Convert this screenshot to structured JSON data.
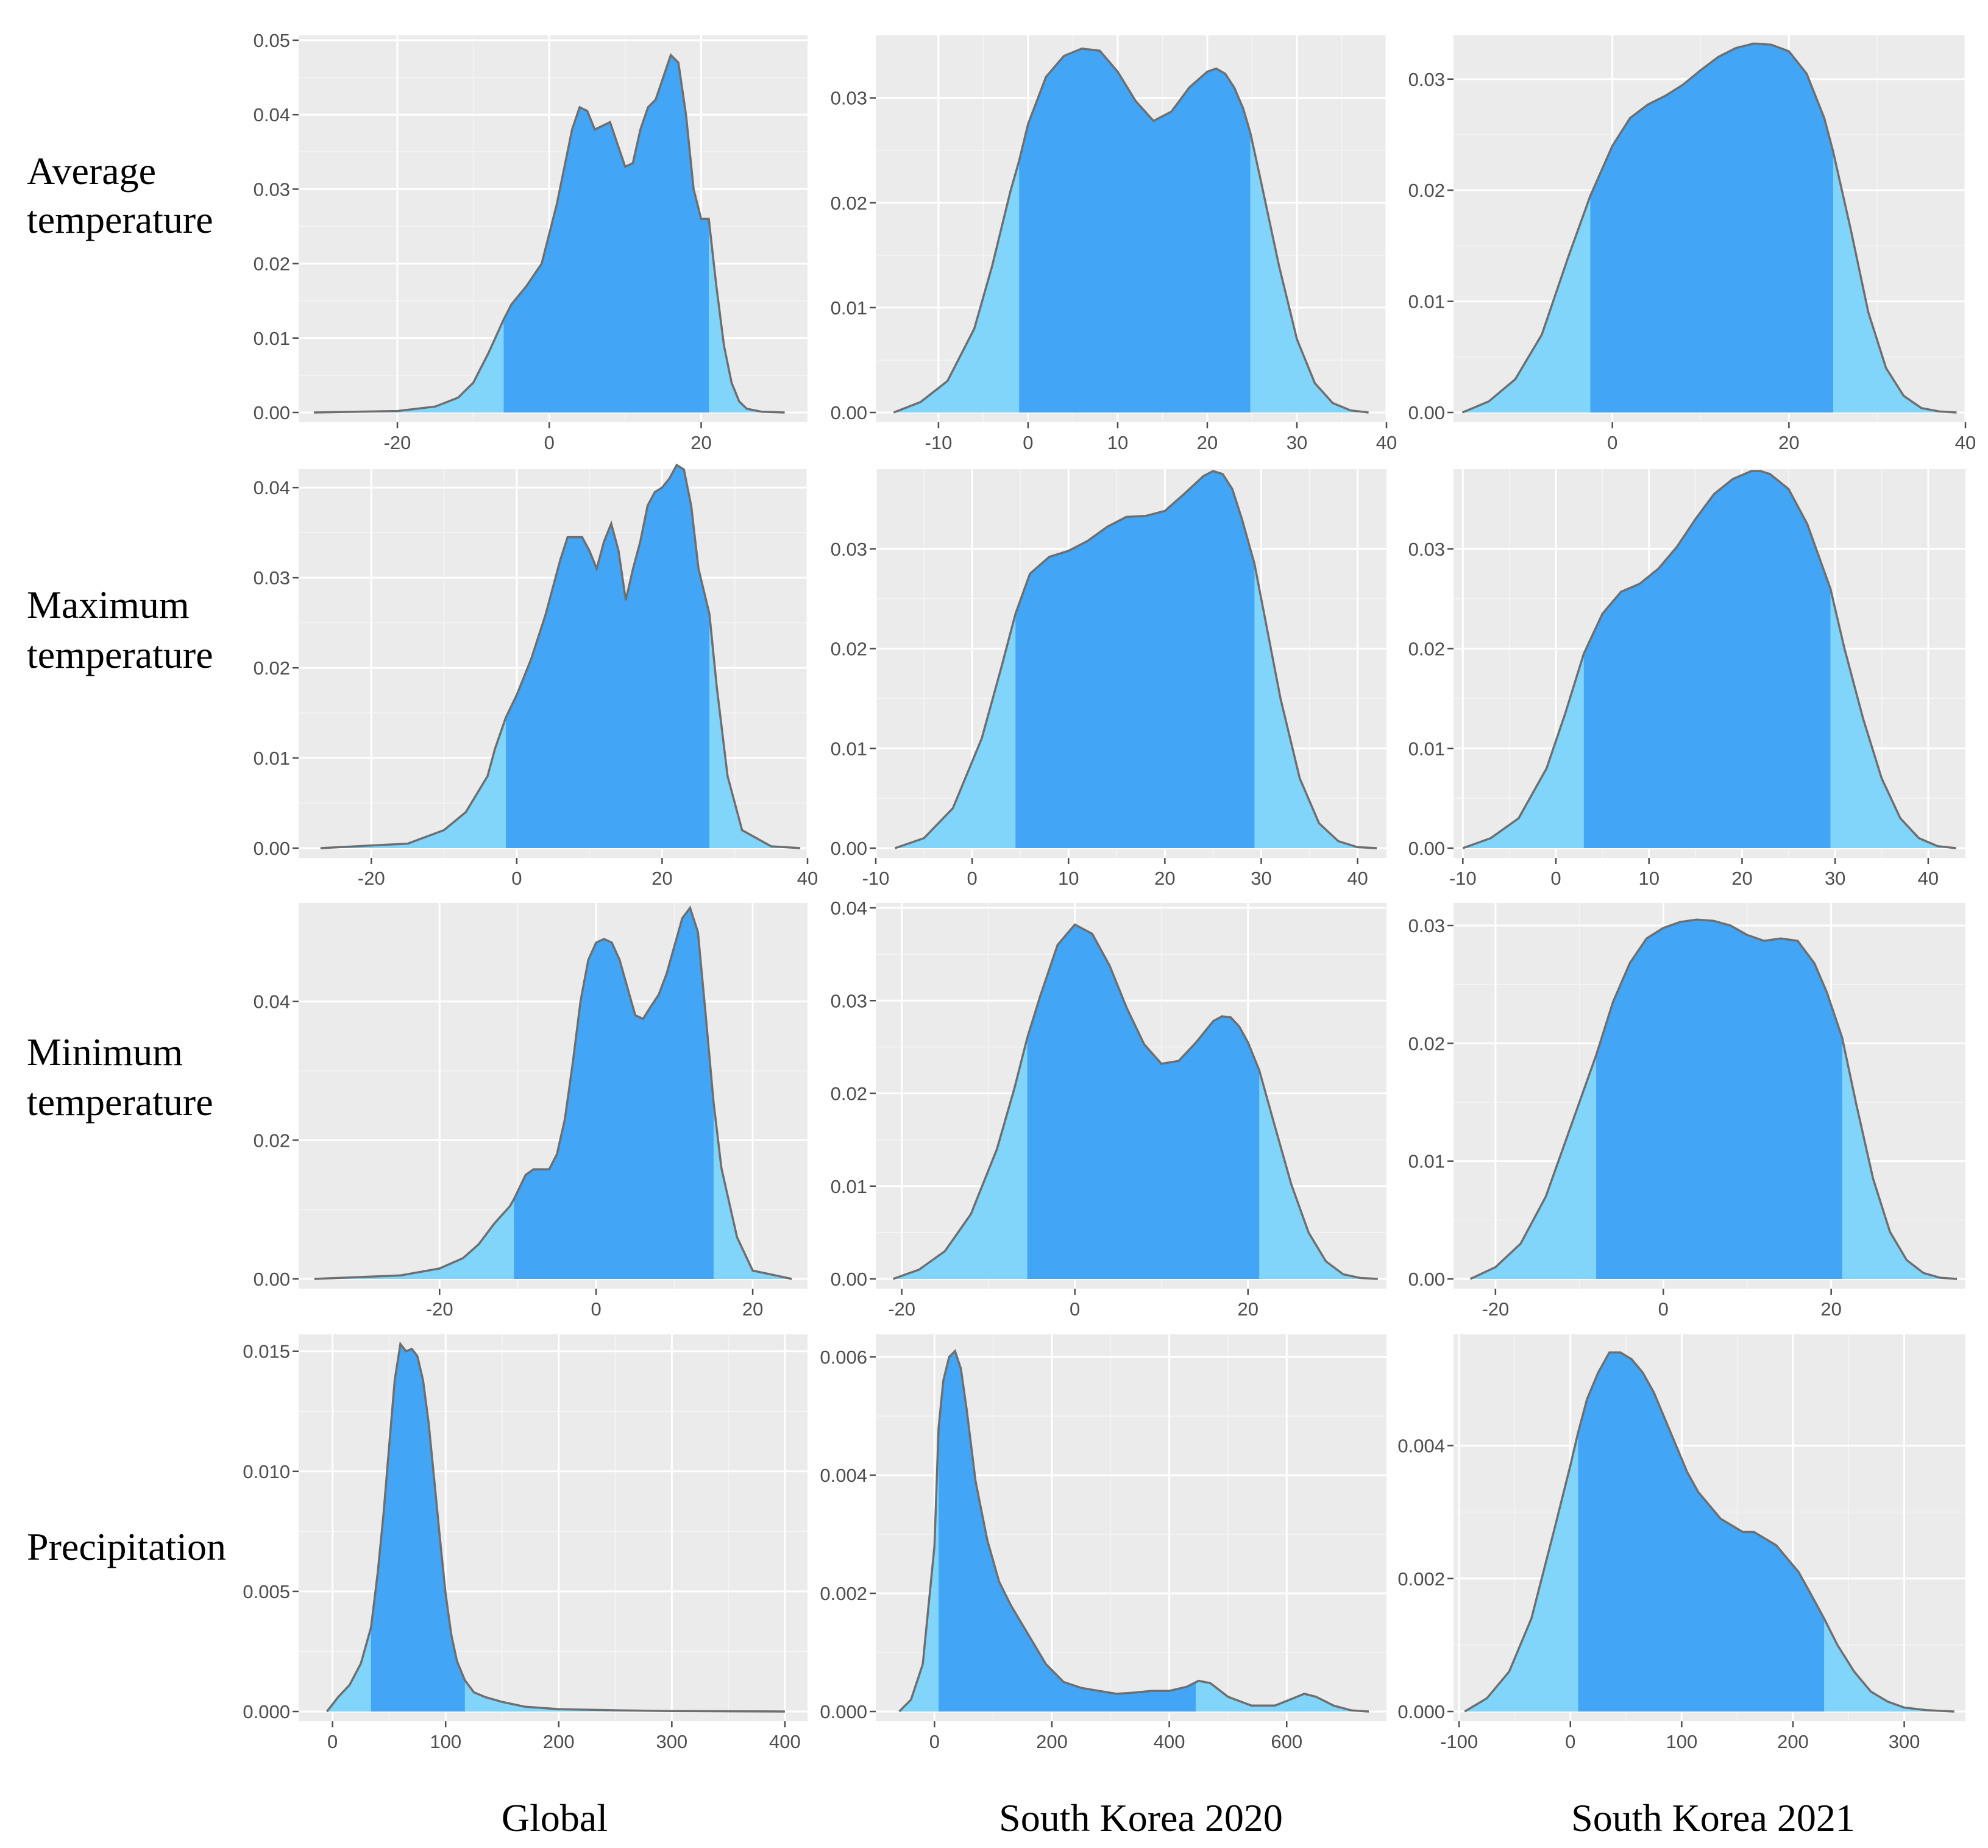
{
  "figure": {
    "row_labels": [
      [
        "Average",
        "temperature"
      ],
      [
        "Maximum",
        "temperature"
      ],
      [
        "Minimum",
        "temperature"
      ],
      [
        "Precipitation"
      ]
    ],
    "col_labels": [
      "Global",
      "South Korea 2020",
      "South Korea 2021"
    ],
    "colors": {
      "panel": "#ebebeb",
      "grid": "#ffffff",
      "tail_fill": "#81d4fa",
      "central_fill": "#42a5f5",
      "outline": "#6e6e6e"
    }
  },
  "chart_data": [
    {
      "type": "area",
      "title": "Average temperature - Global",
      "row": 0,
      "col": 0,
      "xlim": [
        -33,
        34
      ],
      "ylim": [
        0,
        0.05
      ],
      "x_ticks": [
        -20,
        0,
        20
      ],
      "x_tick_labels": [
        "-20",
        "0",
        "20"
      ],
      "y_ticks": [
        0,
        0.01,
        0.02,
        0.03,
        0.04,
        0.05
      ],
      "y_tick_labels": [
        "0.00",
        "0.01",
        "0.02",
        "0.03",
        "0.04",
        "0.05"
      ],
      "central_interval": [
        -6,
        21
      ],
      "x": [
        -31,
        -20,
        -15,
        -12,
        -10,
        -8,
        -6,
        -5,
        -3,
        -1,
        1,
        2,
        3,
        4,
        5,
        6,
        7,
        8,
        9,
        10,
        11,
        12,
        13,
        14,
        15,
        16,
        17,
        18,
        19,
        20,
        21,
        22,
        23,
        24,
        25,
        26,
        28,
        31
      ],
      "y": [
        0,
        0.0002,
        0.0008,
        0.002,
        0.004,
        0.008,
        0.0125,
        0.0145,
        0.017,
        0.02,
        0.028,
        0.033,
        0.038,
        0.041,
        0.0405,
        0.038,
        0.0385,
        0.039,
        0.036,
        0.033,
        0.0335,
        0.038,
        0.041,
        0.042,
        0.045,
        0.048,
        0.047,
        0.04,
        0.03,
        0.026,
        0.026,
        0.017,
        0.009,
        0.004,
        0.0015,
        0.0005,
        0.0001,
        0
      ]
    },
    {
      "type": "area",
      "title": "Average temperature - South Korea 2020",
      "row": 0,
      "col": 1,
      "xlim": [
        -17,
        40
      ],
      "ylim": [
        0,
        0.0355
      ],
      "x_ticks": [
        -10,
        0,
        10,
        20,
        30,
        40
      ],
      "x_tick_labels": [
        "-10",
        "0",
        "10",
        "20",
        "30",
        "40"
      ],
      "y_ticks": [
        0,
        0.01,
        0.02,
        0.03
      ],
      "y_tick_labels": [
        "0.00",
        "0.01",
        "0.02",
        "0.03"
      ],
      "central_interval": [
        -1,
        24.8
      ],
      "x": [
        -15,
        -12,
        -9,
        -6,
        -4,
        -2,
        -1,
        0,
        2,
        4,
        6,
        8,
        10,
        12,
        14,
        16,
        18,
        20,
        21,
        22,
        23,
        24,
        24.8,
        26,
        28,
        30,
        32,
        34,
        36,
        38
      ],
      "y": [
        0,
        0.001,
        0.003,
        0.008,
        0.014,
        0.021,
        0.024,
        0.0275,
        0.032,
        0.034,
        0.0347,
        0.0345,
        0.0325,
        0.0297,
        0.0278,
        0.0287,
        0.031,
        0.0325,
        0.0328,
        0.0323,
        0.031,
        0.029,
        0.0267,
        0.022,
        0.014,
        0.007,
        0.0028,
        0.0009,
        0.0002,
        0
      ]
    },
    {
      "type": "area",
      "title": "Average temperature - South Korea 2021",
      "row": 0,
      "col": 2,
      "xlim": [
        -18,
        40
      ],
      "ylim": [
        0,
        0.0335
      ],
      "x_ticks": [
        0,
        20,
        40
      ],
      "x_tick_labels": [
        "0",
        "20",
        "40"
      ],
      "y_ticks": [
        0,
        0.01,
        0.02,
        0.03
      ],
      "y_tick_labels": [
        "0.00",
        "0.01",
        "0.02",
        "0.03"
      ],
      "central_interval": [
        -2.5,
        25
      ],
      "x": [
        -17,
        -14,
        -11,
        -8,
        -5,
        -2.5,
        0,
        2,
        4,
        6,
        8,
        10,
        12,
        14,
        16,
        18,
        20,
        22,
        24,
        25,
        27,
        29,
        31,
        33,
        35,
        37,
        39
      ],
      "y": [
        0,
        0.001,
        0.003,
        0.007,
        0.014,
        0.0195,
        0.024,
        0.0265,
        0.0277,
        0.0285,
        0.0295,
        0.0308,
        0.032,
        0.0328,
        0.0332,
        0.0331,
        0.0325,
        0.0305,
        0.0265,
        0.0235,
        0.0165,
        0.009,
        0.004,
        0.0015,
        0.0004,
        0.0001,
        0
      ]
    },
    {
      "type": "area",
      "title": "Maximum temperature - Global",
      "row": 1,
      "col": 0,
      "xlim": [
        -30,
        40
      ],
      "ylim": [
        0,
        0.0415
      ],
      "x_ticks": [
        -20,
        0,
        20,
        40
      ],
      "x_tick_labels": [
        "-20",
        "0",
        "20",
        "40"
      ],
      "y_ticks": [
        0,
        0.01,
        0.02,
        0.03,
        0.04
      ],
      "y_tick_labels": [
        "0.00",
        "0.01",
        "0.02",
        "0.03",
        "0.04"
      ],
      "central_interval": [
        -1.5,
        26.5
      ],
      "x": [
        -27,
        -15,
        -10,
        -7,
        -4,
        -3,
        -1.5,
        0,
        2,
        4,
        6,
        7,
        8,
        9,
        10,
        11,
        12,
        13,
        14,
        15,
        16,
        17,
        18,
        19,
        20,
        21,
        22,
        23,
        24,
        25,
        26.5,
        27.5,
        29,
        31,
        35,
        39
      ],
      "y": [
        0,
        0.0005,
        0.002,
        0.004,
        0.008,
        0.011,
        0.0145,
        0.017,
        0.021,
        0.026,
        0.032,
        0.0345,
        0.0345,
        0.0345,
        0.033,
        0.031,
        0.034,
        0.036,
        0.033,
        0.0275,
        0.031,
        0.034,
        0.038,
        0.0395,
        0.04,
        0.041,
        0.0425,
        0.042,
        0.038,
        0.031,
        0.026,
        0.018,
        0.008,
        0.002,
        0.0002,
        0
      ]
    },
    {
      "type": "area",
      "title": "Maximum temperature - South Korea 2020",
      "row": 1,
      "col": 1,
      "xlim": [
        -10,
        43
      ],
      "ylim": [
        0,
        0.0375
      ],
      "x_ticks": [
        -10,
        0,
        10,
        20,
        30,
        40
      ],
      "x_tick_labels": [
        "-10",
        "0",
        "10",
        "20",
        "30",
        "40"
      ],
      "y_ticks": [
        0,
        0.01,
        0.02,
        0.03
      ],
      "y_tick_labels": [
        "0.00",
        "0.01",
        "0.02",
        "0.03"
      ],
      "central_interval": [
        4.5,
        29.3
      ],
      "x": [
        -8,
        -5,
        -2,
        1,
        3,
        4.5,
        6,
        8,
        10,
        12,
        14,
        16,
        18,
        20,
        22,
        24,
        25,
        26,
        27,
        28,
        29.3,
        30.5,
        32,
        34,
        36,
        38,
        40,
        42
      ],
      "y": [
        0,
        0.001,
        0.004,
        0.011,
        0.018,
        0.0235,
        0.0275,
        0.0292,
        0.0298,
        0.0308,
        0.0322,
        0.0332,
        0.0333,
        0.0338,
        0.0355,
        0.0373,
        0.0378,
        0.0375,
        0.036,
        0.033,
        0.0285,
        0.0225,
        0.015,
        0.007,
        0.0025,
        0.0007,
        0.0001,
        0
      ]
    },
    {
      "type": "area",
      "title": "Maximum temperature - South Korea 2021",
      "row": 1,
      "col": 2,
      "xlim": [
        -11,
        44
      ],
      "ylim": [
        0,
        0.0375
      ],
      "x_ticks": [
        -10,
        0,
        10,
        20,
        30,
        40
      ],
      "x_tick_labels": [
        "-10",
        "0",
        "10",
        "20",
        "30",
        "40"
      ],
      "y_ticks": [
        0,
        0.01,
        0.02,
        0.03
      ],
      "y_tick_labels": [
        "0.00",
        "0.01",
        "0.02",
        "0.03"
      ],
      "central_interval": [
        3,
        29.5
      ],
      "x": [
        -10,
        -7,
        -4,
        -1,
        1,
        3,
        5,
        7,
        9,
        11,
        13,
        15,
        17,
        19,
        21,
        22,
        23,
        25,
        27,
        29.5,
        31,
        33,
        35,
        37,
        39,
        41,
        43
      ],
      "y": [
        0,
        0.001,
        0.003,
        0.008,
        0.0135,
        0.0195,
        0.0235,
        0.0257,
        0.0265,
        0.028,
        0.0302,
        0.033,
        0.0355,
        0.037,
        0.0378,
        0.0378,
        0.0375,
        0.036,
        0.0325,
        0.026,
        0.02,
        0.013,
        0.007,
        0.003,
        0.001,
        0.0002,
        0
      ]
    },
    {
      "type": "area",
      "title": "Minimum temperature - Global",
      "row": 2,
      "col": 0,
      "xlim": [
        -38,
        27
      ],
      "ylim": [
        0,
        0.0535
      ],
      "x_ticks": [
        -20,
        0,
        20
      ],
      "x_tick_labels": [
        "-20",
        "0",
        "20"
      ],
      "y_ticks": [
        0,
        0.02,
        0.04
      ],
      "y_tick_labels": [
        "0.00",
        "0.02",
        "0.04"
      ],
      "central_interval": [
        -10.5,
        15
      ],
      "x": [
        -36,
        -25,
        -20,
        -17,
        -15,
        -13,
        -11,
        -10.5,
        -9,
        -8,
        -6,
        -5,
        -4,
        -3,
        -2,
        -1,
        0,
        1,
        2,
        3,
        4,
        5,
        6,
        7,
        8,
        9,
        10,
        11,
        12,
        13,
        14,
        15,
        16,
        18,
        20,
        25
      ],
      "y": [
        0,
        0.0005,
        0.0015,
        0.003,
        0.005,
        0.008,
        0.0105,
        0.0115,
        0.015,
        0.0158,
        0.0158,
        0.018,
        0.023,
        0.031,
        0.04,
        0.046,
        0.0485,
        0.049,
        0.0485,
        0.046,
        0.042,
        0.038,
        0.0375,
        0.0393,
        0.041,
        0.044,
        0.048,
        0.052,
        0.0535,
        0.05,
        0.038,
        0.0255,
        0.016,
        0.006,
        0.0012,
        0
      ]
    },
    {
      "type": "area",
      "title": "Minimum temperature - South Korea 2020",
      "row": 2,
      "col": 1,
      "xlim": [
        -23,
        36
      ],
      "ylim": [
        0,
        0.04
      ],
      "x_ticks": [
        -20,
        0,
        20
      ],
      "x_tick_labels": [
        "-20",
        "0",
        "20"
      ],
      "y_ticks": [
        0,
        0.01,
        0.02,
        0.03,
        0.04
      ],
      "y_tick_labels": [
        "0.00",
        "0.01",
        "0.02",
        "0.03",
        "0.04"
      ],
      "central_interval": [
        -5.5,
        21.3
      ],
      "x": [
        -21,
        -18,
        -15,
        -12,
        -9,
        -7,
        -5.5,
        -4,
        -2,
        0,
        2,
        4,
        6,
        8,
        10,
        12,
        14,
        16,
        17,
        18,
        19,
        20,
        21.3,
        23,
        25,
        27,
        29,
        31,
        33,
        35
      ],
      "y": [
        0,
        0.001,
        0.003,
        0.007,
        0.014,
        0.0205,
        0.026,
        0.0305,
        0.036,
        0.0382,
        0.0372,
        0.0338,
        0.0292,
        0.0253,
        0.0232,
        0.0235,
        0.0255,
        0.0278,
        0.0283,
        0.0282,
        0.0272,
        0.0255,
        0.0225,
        0.0168,
        0.0102,
        0.005,
        0.0019,
        0.0005,
        0.0001,
        0
      ]
    },
    {
      "type": "area",
      "title": "Minimum temperature - South Korea 2021",
      "row": 2,
      "col": 2,
      "xlim": [
        -25,
        36
      ],
      "ylim": [
        0,
        0.0315
      ],
      "x_ticks": [
        -20,
        0,
        20
      ],
      "x_tick_labels": [
        "-20",
        "0",
        "20"
      ],
      "y_ticks": [
        0,
        0.01,
        0.02,
        0.03
      ],
      "y_tick_labels": [
        "0.00",
        "0.01",
        "0.02",
        "0.03"
      ],
      "central_interval": [
        -8,
        21.3
      ],
      "x": [
        -23,
        -20,
        -17,
        -14,
        -11,
        -8,
        -6,
        -4,
        -2,
        0,
        2,
        4,
        6,
        8,
        10,
        12,
        14,
        16,
        18,
        19.5,
        21.3,
        23,
        25,
        27,
        29,
        31,
        33,
        35
      ],
      "y": [
        0,
        0.001,
        0.003,
        0.007,
        0.013,
        0.019,
        0.0235,
        0.0268,
        0.0289,
        0.0298,
        0.0303,
        0.0305,
        0.0304,
        0.03,
        0.0292,
        0.0287,
        0.0289,
        0.0287,
        0.0268,
        0.0243,
        0.0205,
        0.0148,
        0.0085,
        0.004,
        0.0016,
        0.0005,
        0.0001,
        0
      ]
    },
    {
      "type": "area",
      "title": "Precipitation - Global",
      "row": 3,
      "col": 0,
      "xlim": [
        -30,
        420
      ],
      "ylim": [
        0,
        0.0155
      ],
      "x_ticks": [
        0,
        100,
        200,
        300,
        400
      ],
      "x_tick_labels": [
        "0",
        "100",
        "200",
        "300",
        "400"
      ],
      "y_ticks": [
        0,
        0.005,
        0.01,
        0.015
      ],
      "y_tick_labels": [
        "0.000",
        "0.005",
        "0.010",
        "0.015"
      ],
      "central_interval": [
        34,
        117
      ],
      "x": [
        -5,
        5,
        15,
        25,
        34,
        40,
        45,
        50,
        55,
        60,
        65,
        70,
        75,
        80,
        85,
        90,
        95,
        100,
        105,
        110,
        117,
        125,
        135,
        150,
        170,
        200,
        250,
        300,
        350,
        400
      ],
      "y": [
        0,
        0.0006,
        0.0011,
        0.002,
        0.0035,
        0.0058,
        0.0082,
        0.011,
        0.0138,
        0.0153,
        0.015,
        0.0151,
        0.0148,
        0.0138,
        0.012,
        0.0096,
        0.0072,
        0.0049,
        0.0032,
        0.0021,
        0.0013,
        0.0008,
        0.0006,
        0.0004,
        0.0002,
        0.0001,
        5e-05,
        2e-05,
        1e-05,
        0
      ]
    },
    {
      "type": "area",
      "title": "Precipitation - South Korea 2020",
      "row": 3,
      "col": 1,
      "xlim": [
        -100,
        770
      ],
      "ylim": [
        0,
        0.0063
      ],
      "x_ticks": [
        0,
        200,
        400,
        600
      ],
      "x_tick_labels": [
        "0",
        "200",
        "400",
        "600"
      ],
      "y_ticks": [
        0,
        0.002,
        0.004,
        0.006
      ],
      "y_tick_labels": [
        "0.000",
        "0.002",
        "0.004",
        "0.006"
      ],
      "central_interval": [
        7,
        445
      ],
      "x": [
        -60,
        -40,
        -20,
        0,
        7,
        15,
        25,
        35,
        45,
        55,
        70,
        90,
        110,
        130,
        160,
        190,
        220,
        250,
        280,
        310,
        340,
        370,
        400,
        430,
        450,
        470,
        500,
        540,
        580,
        610,
        630,
        650,
        680,
        710,
        740
      ],
      "y": [
        0,
        0.0002,
        0.0008,
        0.0028,
        0.0048,
        0.0056,
        0.006,
        0.0061,
        0.0058,
        0.0051,
        0.0039,
        0.0029,
        0.0022,
        0.0018,
        0.0013,
        0.0008,
        0.0005,
        0.0004,
        0.00035,
        0.0003,
        0.00032,
        0.00035,
        0.00035,
        0.00042,
        0.00052,
        0.00048,
        0.00025,
        0.0001,
        0.0001,
        0.00022,
        0.0003,
        0.00025,
        0.0001,
        2e-05,
        0
      ]
    },
    {
      "type": "area",
      "title": "Precipitation - South Korea 2021",
      "row": 3,
      "col": 2,
      "xlim": [
        -105,
        355
      ],
      "ylim": [
        0,
        0.0056
      ],
      "x_ticks": [
        -100,
        0,
        100,
        200,
        300
      ],
      "x_tick_labels": [
        "-100",
        "0",
        "100",
        "200",
        "300"
      ],
      "y_ticks": [
        0,
        0.002,
        0.004
      ],
      "y_tick_labels": [
        "0.000",
        "0.002",
        "0.004"
      ],
      "central_interval": [
        7,
        228
      ],
      "x": [
        -95,
        -75,
        -55,
        -35,
        -15,
        0,
        7,
        15,
        25,
        35,
        45,
        55,
        65,
        75,
        85,
        95,
        105,
        115,
        125,
        135,
        145,
        155,
        165,
        175,
        185,
        195,
        205,
        215,
        228,
        240,
        255,
        270,
        285,
        300,
        320,
        345
      ],
      "y": [
        0,
        0.0002,
        0.0006,
        0.0014,
        0.0027,
        0.0037,
        0.0042,
        0.0047,
        0.0051,
        0.0054,
        0.0054,
        0.0053,
        0.0051,
        0.0048,
        0.0044,
        0.004,
        0.0036,
        0.0033,
        0.0031,
        0.0029,
        0.0028,
        0.0027,
        0.0027,
        0.0026,
        0.0025,
        0.0023,
        0.0021,
        0.0018,
        0.0014,
        0.001,
        0.0006,
        0.0003,
        0.00015,
        6e-05,
        2e-05,
        0
      ]
    }
  ]
}
